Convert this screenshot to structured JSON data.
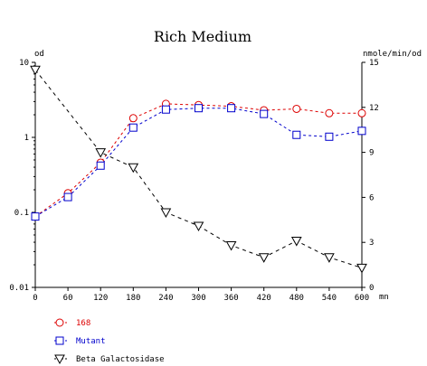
{
  "chart_data": {
    "type": "line",
    "title": "Rich Medium",
    "left_axis_unit": "od",
    "right_axis_unit": "nmole/min/od",
    "x_unit": "mn",
    "x": [
      0,
      60,
      120,
      180,
      240,
      300,
      360,
      420,
      480,
      540,
      600
    ],
    "left_axis": {
      "scale": "log",
      "ylim": [
        0.01,
        10
      ],
      "tick_values": [
        0.01,
        0.1,
        1,
        10
      ],
      "tick_labels": [
        "0.01",
        "0.1",
        "1",
        "10"
      ]
    },
    "right_axis": {
      "scale": "linear",
      "ylim": [
        0,
        15
      ],
      "tick_values": [
        0,
        3,
        6,
        9,
        12,
        15
      ],
      "tick_labels": [
        "0",
        "3",
        "6",
        "9",
        "12",
        "15"
      ]
    },
    "x_axis": {
      "xlim": [
        0,
        600
      ],
      "tick_values": [
        0,
        60,
        120,
        180,
        240,
        300,
        360,
        420,
        480,
        540,
        600
      ],
      "tick_labels": [
        "0",
        "60",
        "120",
        "180",
        "240",
        "300",
        "360",
        "420",
        "480",
        "540",
        "600"
      ]
    },
    "series": [
      {
        "name": "168",
        "axis": "left",
        "marker": "circle",
        "color": "#dd0000",
        "dash": "3,3",
        "values": [
          0.088,
          0.18,
          0.46,
          1.8,
          2.8,
          2.7,
          2.6,
          2.3,
          2.4,
          2.1,
          2.1
        ]
      },
      {
        "name": "Mutant",
        "axis": "left",
        "marker": "square",
        "color": "#0000cc",
        "dash": "3,3",
        "values": [
          0.088,
          0.16,
          0.42,
          1.35,
          2.35,
          2.45,
          2.45,
          2.05,
          1.08,
          1.02,
          1.22
        ]
      },
      {
        "name": "Beta Galactosidase",
        "axis": "right",
        "marker": "triangle-down",
        "color": "#000000",
        "dash": "4,4",
        "values": [
          14.5,
          null,
          9.0,
          8.0,
          5.0,
          4.1,
          2.8,
          2.0,
          3.1,
          2.0,
          1.3
        ]
      }
    ],
    "grid": false,
    "legend_position": "bottom-left"
  }
}
